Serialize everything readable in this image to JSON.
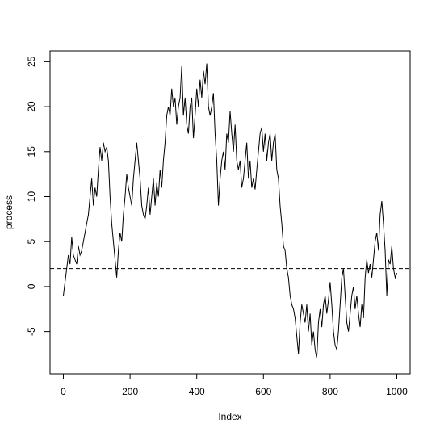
{
  "chart_data": {
    "type": "line",
    "x_label": "Index",
    "y_label": "process",
    "color": "#000000",
    "hline": 2,
    "xlim": [
      -40,
      1040
    ],
    "ylim": [
      -9.7,
      26.2
    ],
    "xticks": [
      0,
      200,
      400,
      600,
      800,
      1000
    ],
    "yticks": [
      -5,
      0,
      5,
      10,
      15,
      20,
      25
    ],
    "x": [
      0,
      5,
      10,
      15,
      20,
      25,
      30,
      35,
      40,
      45,
      50,
      55,
      60,
      65,
      70,
      75,
      80,
      85,
      90,
      95,
      100,
      105,
      110,
      115,
      120,
      125,
      130,
      135,
      140,
      145,
      150,
      155,
      160,
      165,
      170,
      175,
      180,
      185,
      190,
      195,
      200,
      205,
      210,
      215,
      220,
      225,
      230,
      235,
      240,
      245,
      250,
      255,
      260,
      265,
      270,
      275,
      280,
      285,
      290,
      295,
      300,
      305,
      310,
      315,
      320,
      325,
      330,
      335,
      340,
      345,
      350,
      355,
      360,
      365,
      370,
      375,
      380,
      385,
      390,
      395,
      400,
      405,
      410,
      415,
      420,
      425,
      430,
      435,
      440,
      445,
      450,
      455,
      460,
      465,
      470,
      475,
      480,
      485,
      490,
      495,
      500,
      505,
      510,
      515,
      520,
      525,
      530,
      535,
      540,
      545,
      550,
      555,
      560,
      565,
      570,
      575,
      580,
      585,
      590,
      595,
      600,
      605,
      610,
      615,
      620,
      625,
      630,
      635,
      640,
      645,
      650,
      655,
      660,
      665,
      670,
      675,
      680,
      685,
      690,
      695,
      700,
      705,
      710,
      715,
      720,
      725,
      730,
      735,
      740,
      745,
      750,
      755,
      760,
      765,
      770,
      775,
      780,
      785,
      790,
      795,
      800,
      805,
      810,
      815,
      820,
      825,
      830,
      835,
      840,
      845,
      850,
      855,
      860,
      865,
      870,
      875,
      880,
      885,
      890,
      895,
      900,
      905,
      910,
      915,
      920,
      925,
      930,
      935,
      940,
      945,
      950,
      955,
      960,
      965,
      970,
      975,
      980,
      985,
      990,
      995,
      1000
    ],
    "values": [
      -1,
      0.5,
      2,
      3.5,
      2.5,
      5.5,
      3.5,
      3,
      2.5,
      4.5,
      3.5,
      4,
      5,
      6,
      7,
      8,
      10,
      12,
      9,
      11,
      10,
      13,
      15.5,
      14,
      16,
      15,
      15.5,
      14,
      10,
      7,
      5,
      3,
      1,
      4,
      6,
      5,
      8,
      10,
      12.5,
      11,
      10,
      9,
      12,
      14,
      16,
      14,
      12,
      9,
      8,
      7.5,
      9,
      11,
      8,
      10,
      12,
      9,
      11.5,
      10,
      13,
      11,
      14,
      16,
      19,
      20,
      19,
      22,
      20,
      21,
      18,
      20,
      21,
      24.5,
      19,
      21,
      18,
      17,
      20,
      21,
      16.5,
      19,
      22,
      20,
      23,
      21,
      24,
      22.5,
      24.8,
      20,
      19,
      20,
      21.5,
      17,
      14,
      9,
      12,
      14,
      15,
      13,
      17,
      16,
      19.5,
      17,
      15,
      18,
      14,
      13,
      14,
      11,
      12,
      14,
      16,
      12,
      14,
      11,
      12,
      10.8,
      13,
      15,
      17,
      17.7,
      15,
      17,
      14,
      16,
      17,
      14,
      16,
      17,
      13,
      12,
      9,
      7,
      4.5,
      4,
      2,
      1,
      -1,
      -2,
      -2.5,
      -3.5,
      -5.5,
      -7.5,
      -4,
      -2,
      -3,
      -4,
      -2,
      -5,
      -3,
      -6.5,
      -5,
      -7,
      -8,
      -4,
      -2.5,
      -4.5,
      -2,
      -1,
      -3,
      -1.5,
      0.5,
      -2,
      -5,
      -6.5,
      -7,
      -5,
      -2,
      1,
      2,
      -1,
      -4,
      -5,
      -3,
      -1,
      0,
      -2.5,
      -1,
      -3,
      -4.5,
      -2,
      -3.5,
      1,
      3,
      1.5,
      2.5,
      1,
      3,
      5,
      6,
      4,
      8,
      9.5,
      7,
      4,
      -1,
      3,
      2.5,
      4.5,
      2,
      1,
      1.5
    ]
  }
}
